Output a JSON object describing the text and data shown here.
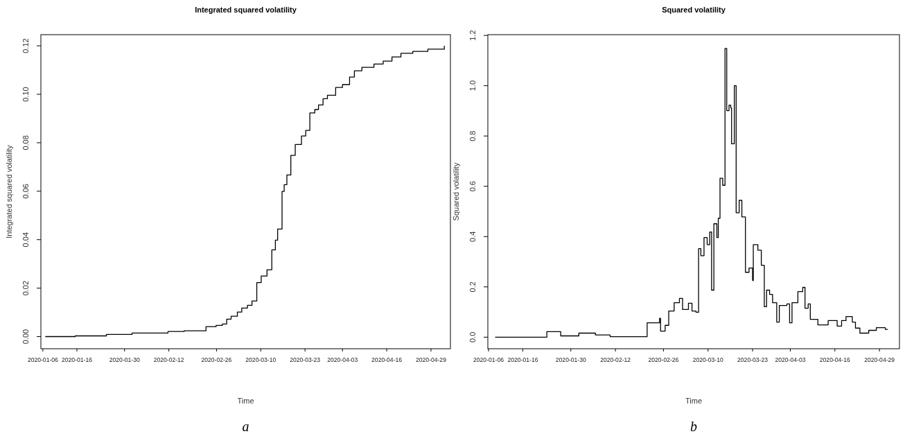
{
  "chart_data": [
    {
      "type": "step",
      "title": "Integrated squared volatility",
      "xlabel": "Time",
      "ylabel": "Integrated squared volatility",
      "annotations": [
        "a"
      ],
      "xlim": [
        "2020-01-05T10:00",
        "2020-05-04T17:00"
      ],
      "ylim": [
        -0.005,
        0.1246
      ],
      "yticks": [
        {
          "value": 0,
          "label": "0.00"
        },
        {
          "value": 0.02,
          "label": "0.02"
        },
        {
          "value": 0.04,
          "label": "0.04"
        },
        {
          "value": 0.06,
          "label": "0.06"
        },
        {
          "value": 0.08,
          "label": "0.08"
        },
        {
          "value": 0.1,
          "label": "0.10"
        },
        {
          "value": 0.12,
          "label": "0.12"
        }
      ],
      "xticks": [
        "2020-01-06",
        "2020-01-16",
        "2020-01-30",
        "2020-02-12",
        "2020-02-26",
        "2020-03-10",
        "2020-03-23",
        "2020-04-03",
        "2020-04-16",
        "2020-04-29"
      ],
      "grid": false,
      "marker": "none",
      "line_style": "solid",
      "series": [
        {
          "color": "#000000",
          "x": [
            "2020-01-06T17:00",
            "2020-01-15T12:00",
            "2020-01-24T16:00",
            "2020-02-01T05:00",
            "2020-02-11T18:00",
            "2020-02-16T12:00",
            "2020-02-22T22:00",
            "2020-02-25T21:00",
            "2020-02-27T17:00",
            "2020-02-29T00:00",
            "2020-03-01T07:00",
            "2020-03-03T03:00",
            "2020-03-04T10:00",
            "2020-03-06T02:00",
            "2020-03-07T10:00",
            "2020-03-08T20:00",
            "2020-03-10T03:00",
            "2020-03-11T20:00",
            "2020-03-13T06:00",
            "2020-03-14T07:00",
            "2020-03-14T23:00",
            "2020-03-16T06:00",
            "2020-03-16T21:00",
            "2020-03-17T16:00",
            "2020-03-18T20:00",
            "2020-03-20T03:00",
            "2020-03-21T23:00",
            "2020-03-23T05:00",
            "2020-03-24T10:00",
            "2020-03-25T21:00",
            "2020-03-26T23:00",
            "2020-03-28T07:00",
            "2020-03-29T14:00",
            "2020-04-01T00:00",
            "2020-04-03T00:00",
            "2020-04-05T02:00",
            "2020-04-06T12:00",
            "2020-04-08T17:00",
            "2020-04-12T06:00",
            "2020-04-14T23:00",
            "2020-04-17T13:00",
            "2020-04-20T04:00",
            "2020-04-23T16:00",
            "2020-04-28T02:00",
            "2020-05-02T22:00"
          ],
          "values": [
            0,
            0.0003,
            0.0009,
            0.0015,
            0.0021,
            0.0024,
            0.0041,
            0.0046,
            0.0052,
            0.0072,
            0.0084,
            0.0101,
            0.0118,
            0.0129,
            0.0147,
            0.0223,
            0.025,
            0.0276,
            0.0358,
            0.0398,
            0.0444,
            0.0599,
            0.0627,
            0.0667,
            0.0748,
            0.0793,
            0.0828,
            0.0851,
            0.0923,
            0.0937,
            0.0956,
            0.0982,
            0.0996,
            0.1028,
            0.104,
            0.1071,
            0.1097,
            0.1111,
            0.1125,
            0.1137,
            0.1154,
            0.1169,
            0.1177,
            0.1186,
            0.12
          ]
        }
      ]
    },
    {
      "type": "step",
      "title": "Squared volatility",
      "xlabel": "Time",
      "ylabel": "Squared volatility",
      "annotations": [
        "b"
      ],
      "xlim": [
        "2020-01-05T19:00",
        "2020-05-04T20:00"
      ],
      "ylim": [
        -0.046,
        1.203
      ],
      "yticks": [
        {
          "value": 0,
          "label": "0.0"
        },
        {
          "value": 0.2,
          "label": "0.2"
        },
        {
          "value": 0.4,
          "label": "0.4"
        },
        {
          "value": 0.6,
          "label": "0.6"
        },
        {
          "value": 0.8,
          "label": "0.8"
        },
        {
          "value": 1,
          "label": "1.0"
        },
        {
          "value": 1.2,
          "label": "1.2"
        }
      ],
      "xticks": [
        "2020-01-06",
        "2020-01-16",
        "2020-01-30",
        "2020-02-12",
        "2020-02-26",
        "2020-03-10",
        "2020-03-23",
        "2020-04-03",
        "2020-04-16",
        "2020-04-29"
      ],
      "grid": false,
      "marker": "none",
      "line_style": "solid",
      "series": [
        {
          "color": "#000000",
          "x": [
            "2020-01-07T22:00",
            "2020-01-23T00:00",
            "2020-01-27T01:00",
            "2020-02-01T08:00",
            "2020-02-06T04:00",
            "2020-02-10T11:00",
            "2020-02-21T06:00",
            "2020-02-24T21:00",
            "2020-02-25T04:00",
            "2020-02-26T12:00",
            "2020-02-27T13:00",
            "2020-02-29T03:00",
            "2020-03-01T16:00",
            "2020-03-02T14:00",
            "2020-03-04T07:00",
            "2020-03-05T08:00",
            "2020-03-06T12:00",
            "2020-03-07T06:00",
            "2020-03-07T22:00",
            "2020-03-08T20:00",
            "2020-03-09T18:00",
            "2020-03-10T12:00",
            "2020-03-11T01:00",
            "2020-03-11T17:00",
            "2020-03-12T14:00",
            "2020-03-13T00:00",
            "2020-03-13T12:00",
            "2020-03-14T07:00",
            "2020-03-14T23:00",
            "2020-03-15T11:00",
            "2020-03-16T03:00",
            "2020-03-16T15:00",
            "2020-03-16T21:00",
            "2020-03-17T16:00",
            "2020-03-18T05:00",
            "2020-03-19T02:00",
            "2020-03-19T21:00",
            "2020-03-20T22:00",
            "2020-03-21T23:00",
            "2020-03-23T00:00",
            "2020-03-23T05:00",
            "2020-03-24T13:00",
            "2020-03-25T13:00",
            "2020-03-26T10:00",
            "2020-03-27T02:00",
            "2020-03-27T23:00",
            "2020-03-28T20:00",
            "2020-03-30T01:00",
            "2020-03-30T19:00",
            "2020-04-02T00:00",
            "2020-04-02T19:00",
            "2020-04-03T12:00",
            "2020-04-05T05:00",
            "2020-04-06T15:00",
            "2020-04-07T07:00",
            "2020-04-08T05:00",
            "2020-04-08T20:00",
            "2020-04-11T01:00",
            "2020-04-14T01:00",
            "2020-04-16T16:00",
            "2020-04-17T23:00",
            "2020-04-19T06:00",
            "2020-04-21T02:00",
            "2020-04-22T00:00",
            "2020-04-23T07:00",
            "2020-04-25T21:00",
            "2020-04-28T02:00",
            "2020-04-30T17:00",
            "2020-05-01T11:00"
          ],
          "values": [
            0.0,
            0.022,
            0.005,
            0.016,
            0.009,
            0.002,
            0.057,
            0.075,
            0.024,
            0.047,
            0.104,
            0.137,
            0.154,
            0.11,
            0.135,
            0.104,
            0.099,
            0.352,
            0.324,
            0.396,
            0.368,
            0.418,
            0.187,
            0.451,
            0.396,
            0.473,
            0.632,
            0.604,
            1.148,
            0.901,
            0.923,
            0.912,
            0.769,
            1.0,
            0.495,
            0.544,
            0.478,
            0.258,
            0.275,
            0.225,
            0.368,
            0.346,
            0.286,
            0.121,
            0.187,
            0.17,
            0.137,
            0.06,
            0.126,
            0.132,
            0.057,
            0.137,
            0.181,
            0.198,
            0.115,
            0.132,
            0.071,
            0.049,
            0.066,
            0.044,
            0.066,
            0.082,
            0.06,
            0.036,
            0.016,
            0.027,
            0.038,
            0.031,
            0.031
          ]
        }
      ]
    }
  ]
}
